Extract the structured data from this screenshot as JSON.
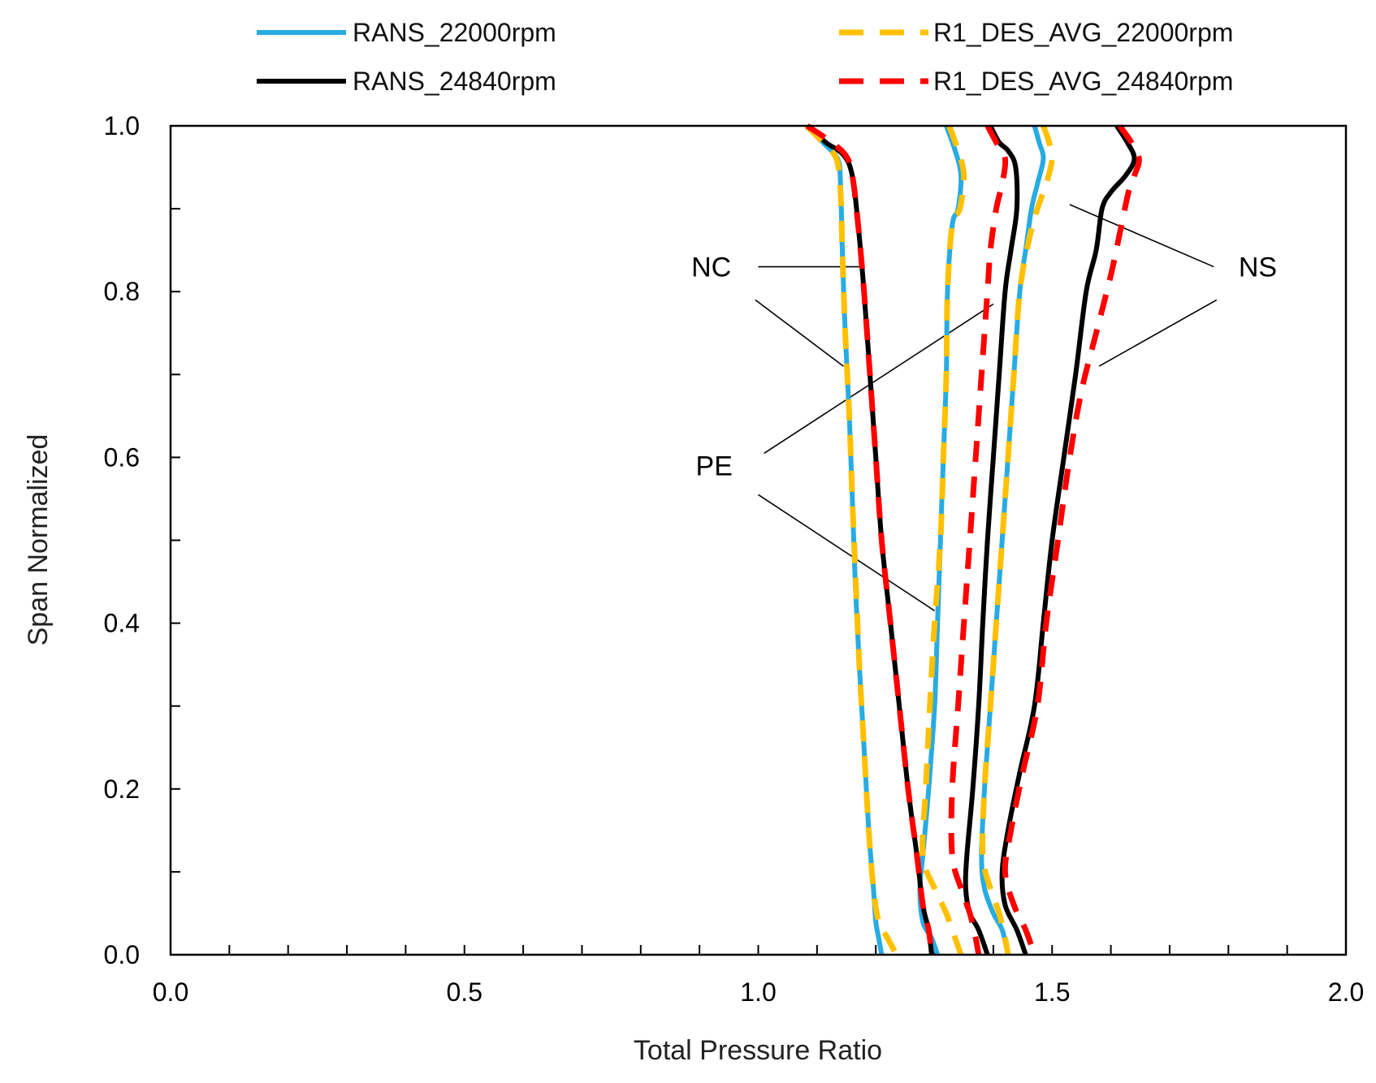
{
  "chart_data": {
    "type": "line",
    "title": "",
    "xlabel": "Total Pressure Ratio",
    "ylabel": "Span Normalized",
    "xlim": [
      0.0,
      2.0
    ],
    "ylim": [
      0.0,
      1.0
    ],
    "x_major_ticks": [
      0.0,
      0.5,
      1.0,
      1.5,
      2.0
    ],
    "x_tick_labels": [
      "0.0",
      "0.5",
      "1.0",
      "1.5",
      "2.0"
    ],
    "x_minor_step": 0.1,
    "y_major_ticks": [
      0.0,
      0.2,
      0.4,
      0.6,
      0.8,
      1.0
    ],
    "y_tick_labels": [
      "0.0",
      "0.2",
      "0.4",
      "0.6",
      "0.8",
      "1.0"
    ],
    "y_minor_step": 0.1,
    "grid": false,
    "legend_position": "top",
    "legend": [
      {
        "label": "RANS_22000rpm",
        "series": "RANS_22000rpm"
      },
      {
        "label": "R1_DES_AVG_22000rpm",
        "series": "R1_DES_AVG_22000rpm"
      },
      {
        "label": "RANS_24840rpm",
        "series": "RANS_24840rpm"
      },
      {
        "label": "R1_DES_AVG_24840rpm",
        "series": "R1_DES_AVG_24840rpm"
      }
    ],
    "series_styles": {
      "RANS_22000rpm": {
        "color": "#29ABE2",
        "dash": "solid"
      },
      "RANS_24840rpm": {
        "color": "#000000",
        "dash": "solid"
      },
      "R1_DES_AVG_22000rpm": {
        "color": "#FFC000",
        "dash": "dashed"
      },
      "R1_DES_AVG_24840rpm": {
        "color": "#FF0000",
        "dash": "dashed"
      }
    },
    "curves": [
      {
        "series": "RANS_22000rpm",
        "condition": "NC",
        "points": [
          [
            1.085,
            1.0
          ],
          [
            1.11,
            0.98
          ],
          [
            1.135,
            0.96
          ],
          [
            1.14,
            0.93
          ],
          [
            1.143,
            0.85
          ],
          [
            1.148,
            0.75
          ],
          [
            1.155,
            0.65
          ],
          [
            1.16,
            0.55
          ],
          [
            1.165,
            0.45
          ],
          [
            1.172,
            0.35
          ],
          [
            1.18,
            0.25
          ],
          [
            1.188,
            0.15
          ],
          [
            1.196,
            0.08
          ],
          [
            1.2,
            0.04
          ],
          [
            1.205,
            0.02
          ],
          [
            1.21,
            0.0
          ]
        ]
      },
      {
        "series": "RANS_24840rpm",
        "condition": "NC",
        "points": [
          [
            1.085,
            1.0
          ],
          [
            1.115,
            0.98
          ],
          [
            1.145,
            0.965
          ],
          [
            1.16,
            0.94
          ],
          [
            1.17,
            0.88
          ],
          [
            1.18,
            0.8
          ],
          [
            1.19,
            0.7
          ],
          [
            1.2,
            0.6
          ],
          [
            1.21,
            0.5
          ],
          [
            1.225,
            0.4
          ],
          [
            1.24,
            0.3
          ],
          [
            1.255,
            0.2
          ],
          [
            1.27,
            0.12
          ],
          [
            1.28,
            0.06
          ],
          [
            1.29,
            0.03
          ],
          [
            1.295,
            0.0
          ]
        ]
      },
      {
        "series": "R1_DES_AVG_22000rpm",
        "condition": "NC",
        "points": [
          [
            1.082,
            1.0
          ],
          [
            1.11,
            0.98
          ],
          [
            1.133,
            0.96
          ],
          [
            1.14,
            0.92
          ],
          [
            1.143,
            0.85
          ],
          [
            1.148,
            0.75
          ],
          [
            1.155,
            0.65
          ],
          [
            1.16,
            0.55
          ],
          [
            1.166,
            0.45
          ],
          [
            1.172,
            0.35
          ],
          [
            1.18,
            0.25
          ],
          [
            1.188,
            0.15
          ],
          [
            1.196,
            0.08
          ],
          [
            1.205,
            0.04
          ],
          [
            1.22,
            0.02
          ],
          [
            1.235,
            0.0
          ]
        ]
      },
      {
        "series": "R1_DES_AVG_24840rpm",
        "condition": "NC",
        "points": [
          [
            1.083,
            1.0
          ],
          [
            1.115,
            0.985
          ],
          [
            1.148,
            0.965
          ],
          [
            1.16,
            0.94
          ],
          [
            1.17,
            0.88
          ],
          [
            1.18,
            0.8
          ],
          [
            1.19,
            0.7
          ],
          [
            1.2,
            0.6
          ],
          [
            1.21,
            0.5
          ],
          [
            1.225,
            0.4
          ],
          [
            1.24,
            0.3
          ],
          [
            1.255,
            0.2
          ],
          [
            1.27,
            0.12
          ],
          [
            1.28,
            0.06
          ],
          [
            1.29,
            0.03
          ],
          [
            1.295,
            0.0
          ]
        ]
      },
      {
        "series": "RANS_22000rpm",
        "condition": "PE",
        "points": [
          [
            1.32,
            1.0
          ],
          [
            1.335,
            0.97
          ],
          [
            1.345,
            0.94
          ],
          [
            1.34,
            0.9
          ],
          [
            1.33,
            0.88
          ],
          [
            1.322,
            0.8
          ],
          [
            1.32,
            0.7
          ],
          [
            1.315,
            0.6
          ],
          [
            1.31,
            0.5
          ],
          [
            1.305,
            0.4
          ],
          [
            1.3,
            0.3
          ],
          [
            1.29,
            0.2
          ],
          [
            1.28,
            0.12
          ],
          [
            1.275,
            0.08
          ],
          [
            1.28,
            0.04
          ],
          [
            1.295,
            0.02
          ],
          [
            1.305,
            0.0
          ]
        ]
      },
      {
        "series": "RANS_24840rpm",
        "condition": "PE",
        "points": [
          [
            1.395,
            1.0
          ],
          [
            1.41,
            0.98
          ],
          [
            1.425,
            0.97
          ],
          [
            1.438,
            0.95
          ],
          [
            1.44,
            0.9
          ],
          [
            1.43,
            0.85
          ],
          [
            1.42,
            0.8
          ],
          [
            1.41,
            0.7
          ],
          [
            1.4,
            0.6
          ],
          [
            1.39,
            0.5
          ],
          [
            1.382,
            0.4
          ],
          [
            1.375,
            0.3
          ],
          [
            1.365,
            0.2
          ],
          [
            1.355,
            0.12
          ],
          [
            1.353,
            0.08
          ],
          [
            1.36,
            0.05
          ],
          [
            1.375,
            0.03
          ],
          [
            1.39,
            0.0
          ]
        ]
      },
      {
        "series": "R1_DES_AVG_22000rpm",
        "condition": "PE",
        "points": [
          [
            1.325,
            1.0
          ],
          [
            1.34,
            0.97
          ],
          [
            1.35,
            0.94
          ],
          [
            1.343,
            0.9
          ],
          [
            1.33,
            0.88
          ],
          [
            1.322,
            0.8
          ],
          [
            1.32,
            0.7
          ],
          [
            1.315,
            0.6
          ],
          [
            1.31,
            0.5
          ],
          [
            1.3,
            0.4
          ],
          [
            1.292,
            0.3
          ],
          [
            1.285,
            0.2
          ],
          [
            1.28,
            0.12
          ],
          [
            1.3,
            0.08
          ],
          [
            1.32,
            0.05
          ],
          [
            1.335,
            0.02
          ],
          [
            1.345,
            0.0
          ]
        ]
      },
      {
        "series": "R1_DES_AVG_24840rpm",
        "condition": "PE",
        "points": [
          [
            1.39,
            1.0
          ],
          [
            1.405,
            0.98
          ],
          [
            1.42,
            0.96
          ],
          [
            1.415,
            0.93
          ],
          [
            1.405,
            0.9
          ],
          [
            1.395,
            0.85
          ],
          [
            1.39,
            0.8
          ],
          [
            1.38,
            0.7
          ],
          [
            1.37,
            0.6
          ],
          [
            1.36,
            0.5
          ],
          [
            1.35,
            0.4
          ],
          [
            1.34,
            0.3
          ],
          [
            1.33,
            0.2
          ],
          [
            1.33,
            0.12
          ],
          [
            1.345,
            0.08
          ],
          [
            1.36,
            0.05
          ],
          [
            1.37,
            0.02
          ],
          [
            1.375,
            0.0
          ]
        ]
      },
      {
        "series": "RANS_22000rpm",
        "condition": "NS",
        "points": [
          [
            1.47,
            1.0
          ],
          [
            1.478,
            0.98
          ],
          [
            1.485,
            0.96
          ],
          [
            1.475,
            0.93
          ],
          [
            1.465,
            0.9
          ],
          [
            1.455,
            0.85
          ],
          [
            1.445,
            0.8
          ],
          [
            1.435,
            0.7
          ],
          [
            1.425,
            0.6
          ],
          [
            1.415,
            0.5
          ],
          [
            1.405,
            0.4
          ],
          [
            1.395,
            0.3
          ],
          [
            1.385,
            0.2
          ],
          [
            1.38,
            0.12
          ],
          [
            1.385,
            0.08
          ],
          [
            1.4,
            0.05
          ],
          [
            1.415,
            0.03
          ],
          [
            1.425,
            0.0
          ]
        ]
      },
      {
        "series": "RANS_24840rpm",
        "condition": "NS",
        "points": [
          [
            1.61,
            1.0
          ],
          [
            1.628,
            0.98
          ],
          [
            1.64,
            0.96
          ],
          [
            1.625,
            0.94
          ],
          [
            1.6,
            0.92
          ],
          [
            1.585,
            0.9
          ],
          [
            1.575,
            0.85
          ],
          [
            1.558,
            0.8
          ],
          [
            1.54,
            0.7
          ],
          [
            1.52,
            0.6
          ],
          [
            1.5,
            0.5
          ],
          [
            1.485,
            0.4
          ],
          [
            1.47,
            0.3
          ],
          [
            1.445,
            0.22
          ],
          [
            1.425,
            0.15
          ],
          [
            1.415,
            0.1
          ],
          [
            1.42,
            0.06
          ],
          [
            1.44,
            0.03
          ],
          [
            1.455,
            0.0
          ]
        ]
      },
      {
        "series": "R1_DES_AVG_22000rpm",
        "condition": "NS",
        "points": [
          [
            1.485,
            1.0
          ],
          [
            1.495,
            0.98
          ],
          [
            1.5,
            0.96
          ],
          [
            1.49,
            0.93
          ],
          [
            1.475,
            0.9
          ],
          [
            1.46,
            0.86
          ],
          [
            1.445,
            0.8
          ],
          [
            1.435,
            0.7
          ],
          [
            1.425,
            0.6
          ],
          [
            1.415,
            0.5
          ],
          [
            1.405,
            0.4
          ],
          [
            1.395,
            0.3
          ],
          [
            1.385,
            0.2
          ],
          [
            1.382,
            0.12
          ],
          [
            1.395,
            0.08
          ],
          [
            1.41,
            0.05
          ],
          [
            1.42,
            0.02
          ],
          [
            1.425,
            0.0
          ]
        ]
      },
      {
        "series": "R1_DES_AVG_24840rpm",
        "condition": "NS",
        "points": [
          [
            1.615,
            1.0
          ],
          [
            1.635,
            0.98
          ],
          [
            1.648,
            0.96
          ],
          [
            1.64,
            0.94
          ],
          [
            1.63,
            0.92
          ],
          [
            1.618,
            0.88
          ],
          [
            1.6,
            0.82
          ],
          [
            1.575,
            0.75
          ],
          [
            1.55,
            0.68
          ],
          [
            1.53,
            0.6
          ],
          [
            1.51,
            0.5
          ],
          [
            1.49,
            0.4
          ],
          [
            1.475,
            0.3
          ],
          [
            1.45,
            0.22
          ],
          [
            1.43,
            0.15
          ],
          [
            1.42,
            0.1
          ],
          [
            1.435,
            0.06
          ],
          [
            1.455,
            0.03
          ],
          [
            1.47,
            0.0
          ]
        ]
      }
    ],
    "annotations": [
      {
        "text": "NC",
        "x": 0.92,
        "y": 0.83,
        "leaders": [
          [
            [
              1.0,
              0.83
            ],
            [
              1.18,
              0.83
            ]
          ],
          [
            [
              0.995,
              0.79
            ],
            [
              1.145,
              0.71
            ]
          ]
        ]
      },
      {
        "text": "PE",
        "x": 0.925,
        "y": 0.59,
        "leaders": [
          [
            [
              1.01,
              0.605
            ],
            [
              1.4,
              0.785
            ]
          ],
          [
            [
              1.0,
              0.555
            ],
            [
              1.3,
              0.415
            ]
          ]
        ]
      },
      {
        "text": "NS",
        "x": 1.85,
        "y": 0.83,
        "leaders": [
          [
            [
              1.775,
              0.83
            ],
            [
              1.53,
              0.905
            ]
          ],
          [
            [
              1.78,
              0.79
            ],
            [
              1.58,
              0.71
            ]
          ]
        ]
      }
    ]
  }
}
